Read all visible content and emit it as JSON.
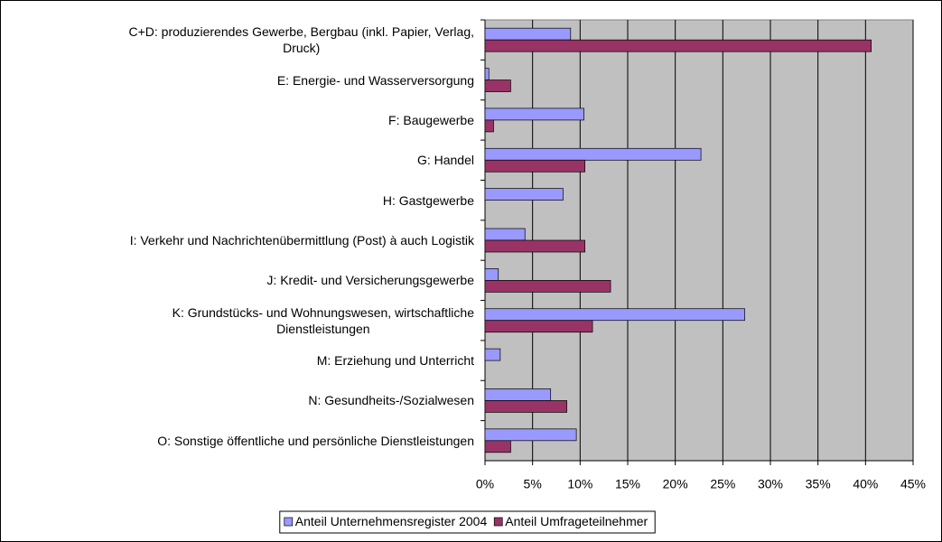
{
  "chart_data": {
    "type": "bar",
    "orientation": "horizontal",
    "categories": [
      "C+D: produzierendes Gewerbe, Bergbau (inkl. Papier, Verlag,\nDruck)",
      "E: Energie- und Wasserversorgung",
      "F: Baugewerbe",
      "G: Handel",
      "H: Gastgewerbe",
      "I: Verkehr und Nachrichtenübermittlung (Post) à auch Logistik",
      "J: Kredit- und Versicherungsgewerbe",
      "K: Grundstücks- und Wohnungswesen, wirtschaftliche\nDienstleistungen",
      "M: Erziehung und Unterricht",
      "N: Gesundheits-/Sozialwesen",
      "O: Sonstige öffentliche und persönliche Dienstleistungen"
    ],
    "series": [
      {
        "name": "Anteil Unternehmensregister 2004",
        "color": "#9999ff",
        "values": [
          9.0,
          0.4,
          10.4,
          22.7,
          8.2,
          4.2,
          1.4,
          27.3,
          1.6,
          6.9,
          9.6
        ]
      },
      {
        "name": "Anteil Umfrageteilnehmer",
        "color": "#993366",
        "values": [
          40.6,
          2.7,
          0.9,
          10.5,
          0,
          10.5,
          13.2,
          11.3,
          0,
          8.6,
          2.7
        ]
      }
    ],
    "xlim": [
      0,
      45
    ],
    "xticks": [
      {
        "value": 0,
        "label": "0%"
      },
      {
        "value": 5,
        "label": "5%"
      },
      {
        "value": 10,
        "label": "10%"
      },
      {
        "value": 15,
        "label": "15%"
      },
      {
        "value": 20,
        "label": "20%"
      },
      {
        "value": 25,
        "label": "25%"
      },
      {
        "value": 30,
        "label": "30%"
      },
      {
        "value": 35,
        "label": "35%"
      },
      {
        "value": 40,
        "label": "40%"
      },
      {
        "value": 45,
        "label": "45%"
      }
    ],
    "grid": true,
    "plot_background": "#c0c0c0",
    "legend": "bottom"
  }
}
